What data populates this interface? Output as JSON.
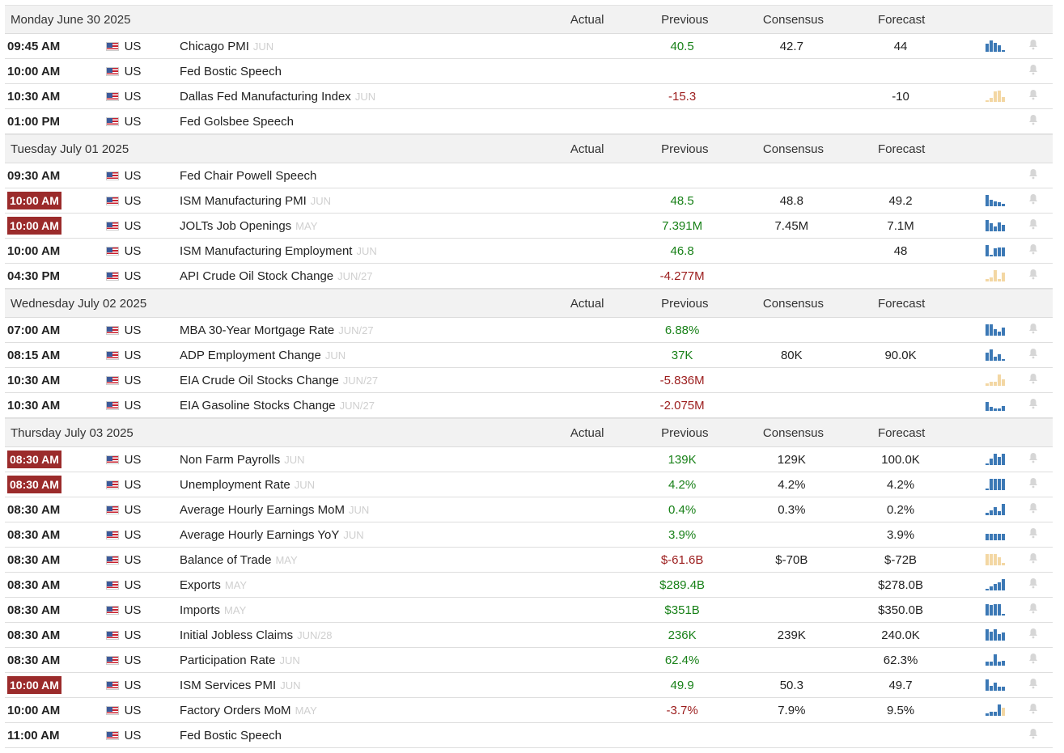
{
  "columns": {
    "actual": "Actual",
    "previous": "Previous",
    "consensus": "Consensus",
    "forecast": "Forecast"
  },
  "colors": {
    "positive": "#188118",
    "negative": "#9b1c1c",
    "highlight_time": "#9b2b2b",
    "chart_blue": "#3b78b5",
    "chart_tan": "#f3d7a3"
  },
  "days": [
    {
      "date": "Monday June 30 2025",
      "events": [
        {
          "time": "09:45 AM",
          "highlight": false,
          "country": "US",
          "name": "Chicago PMI",
          "ref": "JUN",
          "actual": "",
          "previous": "40.5",
          "prev_color": "pos",
          "consensus": "42.7",
          "forecast": "44",
          "chart": {
            "color": "blue",
            "bars": [
              0.6,
              0.9,
              0.7,
              0.5,
              0.1
            ]
          }
        },
        {
          "time": "10:00 AM",
          "highlight": false,
          "country": "US",
          "name": "Fed Bostic Speech",
          "ref": "",
          "actual": "",
          "previous": "",
          "prev_color": "neu",
          "consensus": "",
          "forecast": "",
          "chart": null
        },
        {
          "time": "10:30 AM",
          "highlight": false,
          "country": "US",
          "name": "Dallas Fed Manufacturing Index",
          "ref": "JUN",
          "actual": "",
          "previous": "-15.3",
          "prev_color": "neg",
          "consensus": "",
          "forecast": "-10",
          "chart": {
            "color": "tan",
            "bars": [
              0.1,
              0.3,
              0.8,
              0.9,
              0.4
            ]
          }
        },
        {
          "time": "01:00 PM",
          "highlight": false,
          "country": "US",
          "name": "Fed Golsbee Speech",
          "ref": "",
          "actual": "",
          "previous": "",
          "prev_color": "neu",
          "consensus": "",
          "forecast": "",
          "chart": null
        }
      ]
    },
    {
      "date": "Tuesday July 01 2025",
      "events": [
        {
          "time": "09:30 AM",
          "highlight": false,
          "country": "US",
          "name": "Fed Chair Powell Speech",
          "ref": "",
          "actual": "",
          "previous": "",
          "prev_color": "neu",
          "consensus": "",
          "forecast": "",
          "chart": null
        },
        {
          "time": "10:00 AM",
          "highlight": true,
          "country": "US",
          "name": "ISM Manufacturing PMI",
          "ref": "JUN",
          "actual": "",
          "previous": "48.5",
          "prev_color": "pos",
          "consensus": "48.8",
          "forecast": "49.2",
          "chart": {
            "color": "blue",
            "bars": [
              0.9,
              0.5,
              0.4,
              0.3,
              0.2
            ]
          }
        },
        {
          "time": "10:00 AM",
          "highlight": true,
          "country": "US",
          "name": "JOLTs Job Openings",
          "ref": "MAY",
          "actual": "",
          "previous": "7.391M",
          "prev_color": "pos",
          "consensus": "7.45M",
          "forecast": "7.1M",
          "chart": {
            "color": "blue",
            "bars": [
              0.9,
              0.6,
              0.4,
              0.7,
              0.5
            ]
          }
        },
        {
          "time": "10:00 AM",
          "highlight": false,
          "country": "US",
          "name": "ISM Manufacturing Employment",
          "ref": "JUN",
          "actual": "",
          "previous": "46.8",
          "prev_color": "pos",
          "consensus": "",
          "forecast": "48",
          "chart": {
            "color": "blue",
            "bars": [
              0.9,
              0.1,
              0.6,
              0.7,
              0.7
            ]
          }
        },
        {
          "time": "04:30 PM",
          "highlight": false,
          "country": "US",
          "name": "API Crude Oil Stock Change",
          "ref": "JUN/27",
          "actual": "",
          "previous": "-4.277M",
          "prev_color": "neg",
          "consensus": "",
          "forecast": "",
          "chart": {
            "color": "tan",
            "bars": [
              0.2,
              0.3,
              0.9,
              0.2,
              0.7
            ]
          }
        }
      ]
    },
    {
      "date": "Wednesday July 02 2025",
      "events": [
        {
          "time": "07:00 AM",
          "highlight": false,
          "country": "US",
          "name": "MBA 30-Year Mortgage Rate",
          "ref": "JUN/27",
          "actual": "",
          "previous": "6.88%",
          "prev_color": "pos",
          "consensus": "",
          "forecast": "",
          "chart": {
            "color": "blue",
            "bars": [
              0.9,
              0.9,
              0.5,
              0.3,
              0.6
            ]
          }
        },
        {
          "time": "08:15 AM",
          "highlight": false,
          "country": "US",
          "name": "ADP Employment Change",
          "ref": "JUN",
          "actual": "",
          "previous": "37K",
          "prev_color": "pos",
          "consensus": "80K",
          "forecast": "90.0K",
          "chart": {
            "color": "blue",
            "bars": [
              0.6,
              0.9,
              0.3,
              0.5,
              0.1
            ]
          }
        },
        {
          "time": "10:30 AM",
          "highlight": false,
          "country": "US",
          "name": "EIA Crude Oil Stocks Change",
          "ref": "JUN/27",
          "actual": "",
          "previous": "-5.836M",
          "prev_color": "neg",
          "consensus": "",
          "forecast": "",
          "chart": {
            "color": "tan",
            "bars": [
              0.2,
              0.3,
              0.3,
              0.9,
              0.5
            ]
          }
        },
        {
          "time": "10:30 AM",
          "highlight": false,
          "country": "US",
          "name": "EIA Gasoline Stocks Change",
          "ref": "JUN/27",
          "actual": "",
          "previous": "-2.075M",
          "prev_color": "neg",
          "consensus": "",
          "forecast": "",
          "chart": {
            "color": "blue",
            "bars": [
              0.7,
              0.3,
              0.2,
              0.2,
              0.4
            ]
          }
        }
      ]
    },
    {
      "date": "Thursday July 03 2025",
      "events": [
        {
          "time": "08:30 AM",
          "highlight": true,
          "country": "US",
          "name": "Non Farm Payrolls",
          "ref": "JUN",
          "actual": "",
          "previous": "139K",
          "prev_color": "pos",
          "consensus": "129K",
          "forecast": "100.0K",
          "chart": {
            "color": "blue",
            "bars": [
              0.1,
              0.5,
              0.9,
              0.6,
              0.9
            ]
          }
        },
        {
          "time": "08:30 AM",
          "highlight": true,
          "country": "US",
          "name": "Unemployment Rate",
          "ref": "JUN",
          "actual": "",
          "previous": "4.2%",
          "prev_color": "pos",
          "consensus": "4.2%",
          "forecast": "4.2%",
          "chart": {
            "color": "blue",
            "bars": [
              0.1,
              0.9,
              0.9,
              0.9,
              0.9
            ]
          }
        },
        {
          "time": "08:30 AM",
          "highlight": false,
          "country": "US",
          "name": "Average Hourly Earnings MoM",
          "ref": "JUN",
          "actual": "",
          "previous": "0.4%",
          "prev_color": "pos",
          "consensus": "0.3%",
          "forecast": "0.2%",
          "chart": {
            "color": "blue",
            "bars": [
              0.2,
              0.4,
              0.6,
              0.3,
              0.9
            ]
          }
        },
        {
          "time": "08:30 AM",
          "highlight": false,
          "country": "US",
          "name": "Average Hourly Earnings YoY",
          "ref": "JUN",
          "actual": "",
          "previous": "3.9%",
          "prev_color": "pos",
          "consensus": "",
          "forecast": "3.9%",
          "chart": {
            "color": "blue",
            "bars": [
              0.5,
              0.5,
              0.5,
              0.5,
              0.5
            ]
          }
        },
        {
          "time": "08:30 AM",
          "highlight": false,
          "country": "US",
          "name": "Balance of Trade",
          "ref": "MAY",
          "actual": "",
          "previous": "$-61.6B",
          "prev_color": "neg",
          "consensus": "$-70B",
          "forecast": "$-72B",
          "chart": {
            "color": "tan",
            "bars": [
              0.9,
              0.9,
              0.9,
              0.6,
              0.2
            ]
          }
        },
        {
          "time": "08:30 AM",
          "highlight": false,
          "country": "US",
          "name": "Exports",
          "ref": "MAY",
          "actual": "",
          "previous": "$289.4B",
          "prev_color": "pos",
          "consensus": "",
          "forecast": "$278.0B",
          "chart": {
            "color": "blue",
            "bars": [
              0.1,
              0.3,
              0.5,
              0.6,
              0.9
            ]
          }
        },
        {
          "time": "08:30 AM",
          "highlight": false,
          "country": "US",
          "name": "Imports",
          "ref": "MAY",
          "actual": "",
          "previous": "$351B",
          "prev_color": "pos",
          "consensus": "",
          "forecast": "$350.0B",
          "chart": {
            "color": "blue",
            "bars": [
              0.9,
              0.8,
              0.9,
              0.9,
              0.1
            ]
          }
        },
        {
          "time": "08:30 AM",
          "highlight": false,
          "country": "US",
          "name": "Initial Jobless Claims",
          "ref": "JUN/28",
          "actual": "",
          "previous": "236K",
          "prev_color": "pos",
          "consensus": "239K",
          "forecast": "240.0K",
          "chart": {
            "color": "blue",
            "bars": [
              0.9,
              0.7,
              0.9,
              0.5,
              0.6
            ]
          }
        },
        {
          "time": "08:30 AM",
          "highlight": false,
          "country": "US",
          "name": "Participation Rate",
          "ref": "JUN",
          "actual": "",
          "previous": "62.4%",
          "prev_color": "pos",
          "consensus": "",
          "forecast": "62.3%",
          "chart": {
            "color": "blue",
            "bars": [
              0.3,
              0.3,
              0.9,
              0.3,
              0.4
            ]
          }
        },
        {
          "time": "10:00 AM",
          "highlight": true,
          "country": "US",
          "name": "ISM Services PMI",
          "ref": "JUN",
          "actual": "",
          "previous": "49.9",
          "prev_color": "pos",
          "consensus": "50.3",
          "forecast": "49.7",
          "chart": {
            "color": "blue",
            "bars": [
              0.9,
              0.4,
              0.6,
              0.3,
              0.3
            ]
          }
        },
        {
          "time": "10:00 AM",
          "highlight": false,
          "country": "US",
          "name": "Factory Orders MoM",
          "ref": "MAY",
          "actual": "",
          "previous": "-3.7%",
          "prev_color": "neg",
          "consensus": "7.9%",
          "forecast": "9.5%",
          "chart": {
            "color": "mixed",
            "bars": [
              0.2,
              0.3,
              0.3,
              0.9,
              0.6
            ]
          }
        },
        {
          "time": "11:00 AM",
          "highlight": false,
          "country": "US",
          "name": "Fed Bostic Speech",
          "ref": "",
          "actual": "",
          "previous": "",
          "prev_color": "neu",
          "consensus": "",
          "forecast": "",
          "chart": null
        }
      ]
    }
  ]
}
